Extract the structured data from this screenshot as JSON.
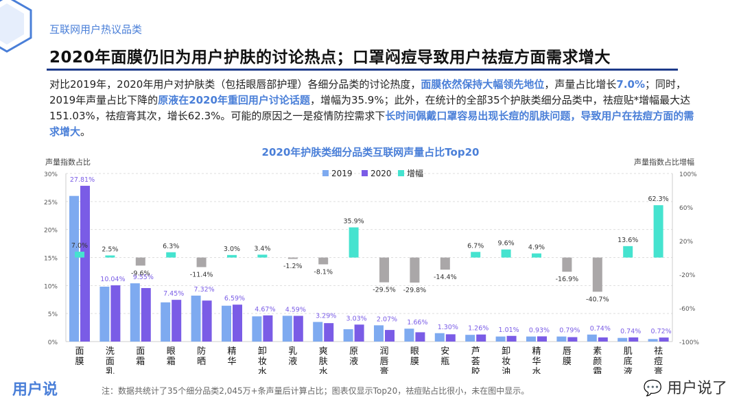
{
  "header": {
    "category": "互联网用户热议品类",
    "title": "2020年面膜仍旧为用户护肤的讨论热点；口罩闷痘导致用户祛痘方面需求增大"
  },
  "paragraph": [
    {
      "t": "对比2019年，2020年用户对护肤类（包括眼唇部护理）各细分品类的讨论热度，",
      "hl": false
    },
    {
      "t": "面膜依然保持大幅领先地位",
      "hl": true
    },
    {
      "t": "，声量占比增长",
      "hl": false
    },
    {
      "t": "7.0%",
      "hl": true
    },
    {
      "t": "；同时，2019年声量占比下降的",
      "hl": false
    },
    {
      "t": "原液在2020年重回用户讨论话题",
      "hl": true
    },
    {
      "t": "，增幅为35.9%；此外，在统计的全部35个护肤类细分品类中，祛痘贴*增幅最大达151.03%，祛痘膏其次，增长62.3%。可能的原因之一是疫情防控需求下",
      "hl": false
    },
    {
      "t": "长时间佩戴口罩容易出现长痘的肌肤问题，导致用户在祛痘方面的需求增大",
      "hl": true
    },
    {
      "t": "。",
      "hl": false
    }
  ],
  "footer": {
    "note": "注：数据共统计了35个细分品类2,045万+条声量后计算占比；图表仅显示Top20，祛痘贴占比很小，未在图中显示。",
    "logo": "用户说",
    "wechat": "用户说了"
  },
  "colors": {
    "s2019": "#7eaaf0",
    "s2020": "#7a5ce6",
    "growth_pos": "#45e3cf",
    "growth_neg": "#aaa7a8",
    "accent": "#4a7fd8"
  },
  "chart_data": {
    "type": "bar",
    "title": "2020年护肤类细分品类互联网声量占比Top20",
    "ylabel": "声量指数占比",
    "y2label": "声量指数占比增幅",
    "ylim": [
      0,
      30
    ],
    "y2lim": [
      -100,
      100
    ],
    "yticks": [
      "0%",
      "5%",
      "10%",
      "15%",
      "20%",
      "25%",
      "30%"
    ],
    "y2ticks": [
      "-100%",
      "-60%",
      "-20%",
      "20%",
      "60%",
      "100%"
    ],
    "legend": [
      "2019",
      "2020",
      "增幅"
    ],
    "legend_position": "top-center",
    "categories": [
      "面膜",
      "洗面乳",
      "面霜",
      "眼霜",
      "防晒",
      "精华",
      "卸妆水",
      "乳液",
      "爽肤水",
      "原液",
      "润唇膏",
      "眼膜",
      "安瓶",
      "芦荟胶",
      "卸妆油",
      "精华水",
      "唇膜",
      "素颜霜",
      "肌底液",
      "祛痘膏"
    ],
    "series": [
      {
        "name": "2019",
        "values": [
          26.0,
          9.8,
          10.4,
          7.0,
          8.2,
          6.4,
          4.5,
          4.6,
          3.5,
          2.2,
          2.9,
          2.3,
          1.5,
          1.2,
          0.9,
          0.9,
          0.9,
          1.25,
          0.65,
          0.45
        ]
      },
      {
        "name": "2020",
        "values": [
          27.81,
          10.04,
          9.55,
          7.45,
          7.32,
          6.59,
          4.67,
          4.59,
          3.29,
          3.03,
          2.07,
          1.66,
          1.3,
          1.26,
          1.01,
          0.93,
          0.79,
          0.74,
          0.74,
          0.72
        ]
      },
      {
        "name": "增幅",
        "values": [
          7.0,
          2.5,
          -9.6,
          6.3,
          -11.4,
          3.0,
          3.4,
          -1.2,
          -8.1,
          35.9,
          -29.5,
          -29.8,
          -14.4,
          6.7,
          9.6,
          4.9,
          -16.9,
          -40.7,
          13.6,
          62.3
        ]
      }
    ]
  }
}
